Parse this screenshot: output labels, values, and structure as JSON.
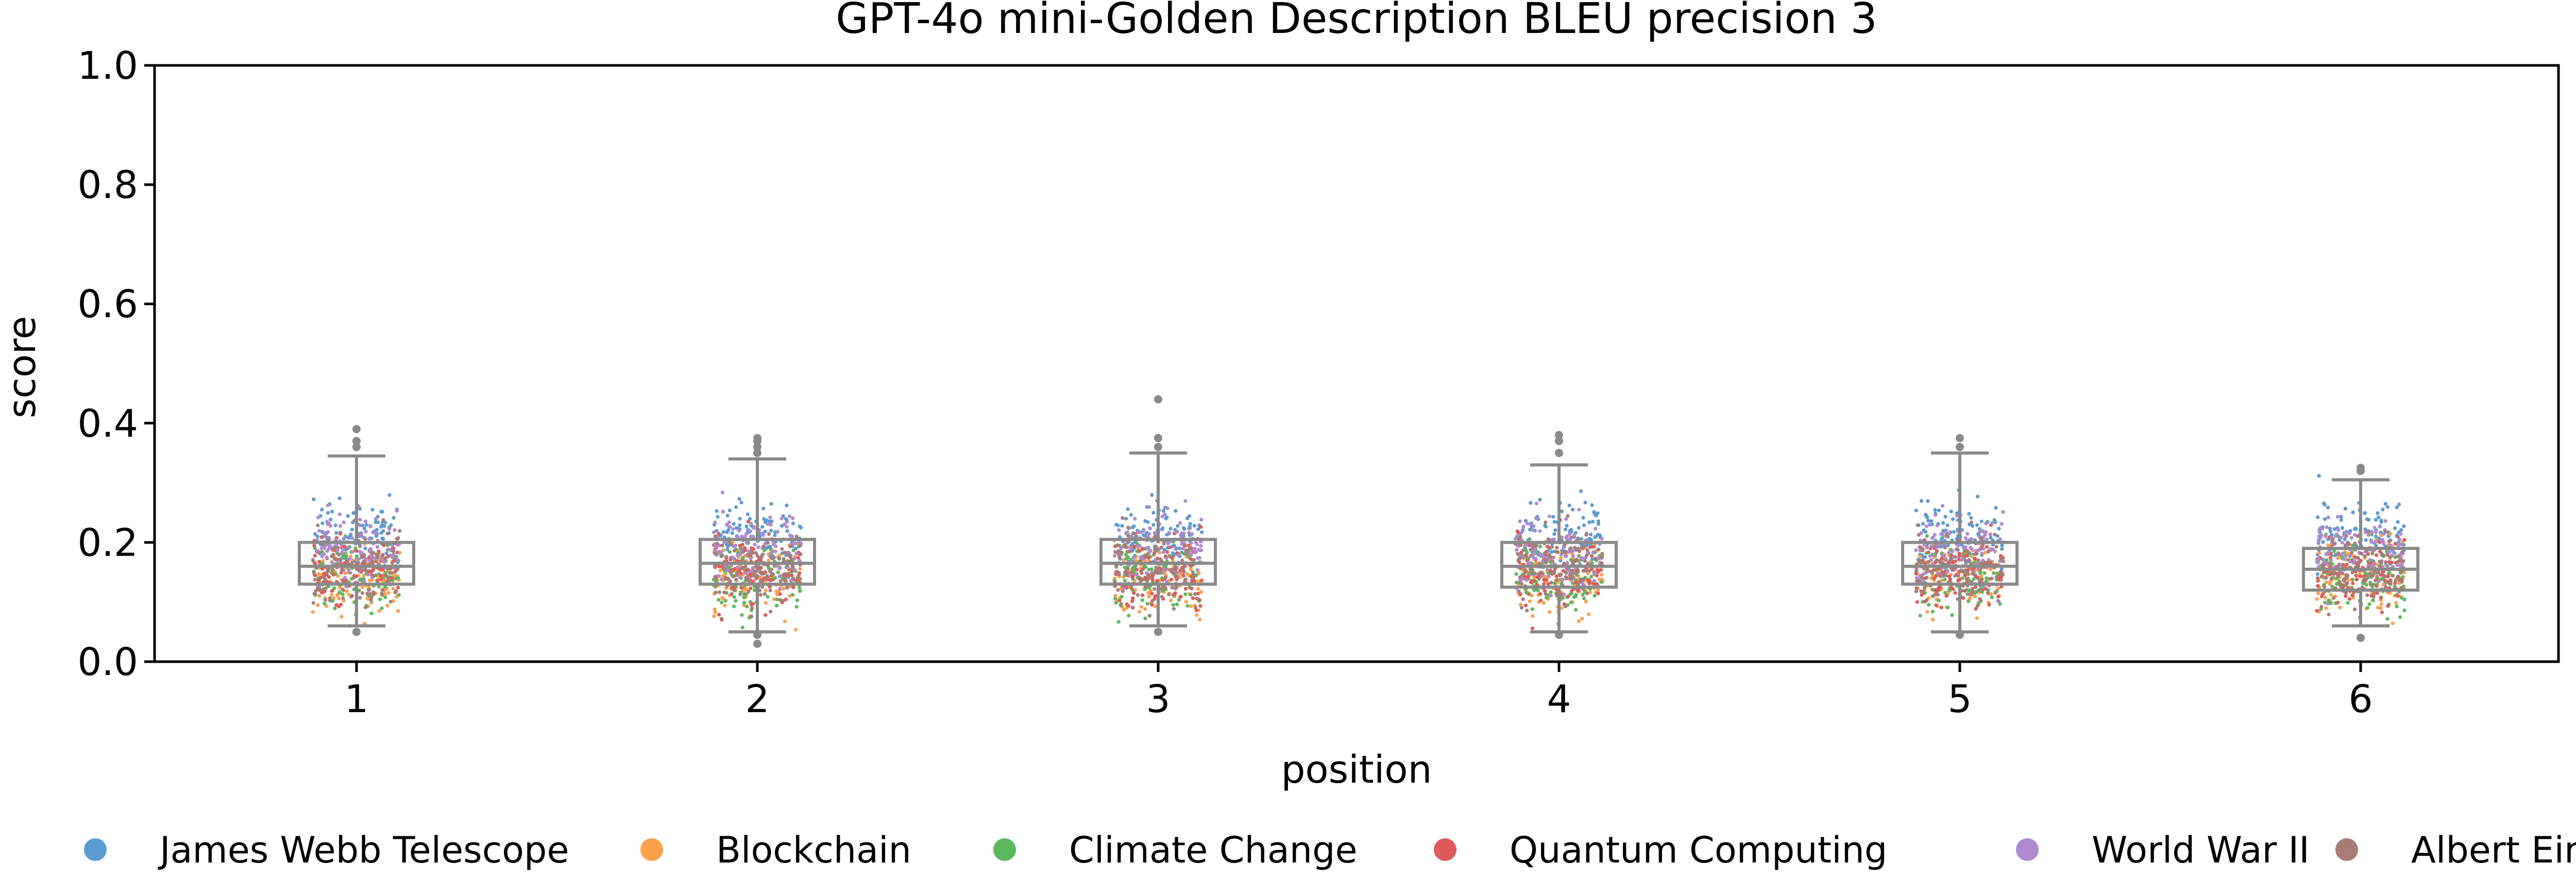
{
  "chart_data": {
    "type": "box+strip",
    "title": "GPT-4o mini-Golden Description BLEU precision 3",
    "xlabel": "position",
    "ylabel": "score",
    "ylim": [
      0.0,
      1.0
    ],
    "yticks": [
      "0.0",
      "0.2",
      "0.4",
      "0.6",
      "0.8",
      "1.0"
    ],
    "categories": [
      "1",
      "2",
      "3",
      "4",
      "5",
      "6"
    ],
    "grid": false,
    "legend_position": "bottom",
    "series": [
      {
        "name": "James Webb Telescope",
        "color": "#5a9bd3",
        "center": 0.21
      },
      {
        "name": "Blockchain",
        "color": "#ffa04a",
        "center": 0.14
      },
      {
        "name": "Climate Change",
        "color": "#5cb85c",
        "center": 0.145
      },
      {
        "name": "Quantum Computing",
        "color": "#e05a5a",
        "center": 0.15
      },
      {
        "name": "World War II",
        "color": "#b08ad0",
        "center": 0.19
      },
      {
        "name": "Albert Einstein",
        "color": "#a87d78",
        "center": 0.155
      }
    ],
    "boxes": [
      {
        "position": "1",
        "whisker_low": 0.06,
        "q1": 0.13,
        "median": 0.16,
        "q3": 0.2,
        "whisker_high": 0.345,
        "outliers": [
          0.36,
          0.37,
          0.39,
          0.05
        ]
      },
      {
        "position": "2",
        "whisker_low": 0.05,
        "q1": 0.13,
        "median": 0.165,
        "q3": 0.205,
        "whisker_high": 0.34,
        "outliers": [
          0.35,
          0.36,
          0.37,
          0.375,
          0.045,
          0.03
        ]
      },
      {
        "position": "3",
        "whisker_low": 0.06,
        "q1": 0.13,
        "median": 0.165,
        "q3": 0.205,
        "whisker_high": 0.35,
        "outliers": [
          0.36,
          0.375,
          0.44,
          0.05
        ]
      },
      {
        "position": "4",
        "whisker_low": 0.05,
        "q1": 0.125,
        "median": 0.16,
        "q3": 0.2,
        "whisker_high": 0.33,
        "outliers": [
          0.35,
          0.37,
          0.38,
          0.045
        ]
      },
      {
        "position": "5",
        "whisker_low": 0.05,
        "q1": 0.13,
        "median": 0.16,
        "q3": 0.2,
        "whisker_high": 0.35,
        "outliers": [
          0.36,
          0.375,
          0.045
        ]
      },
      {
        "position": "6",
        "whisker_low": 0.06,
        "q1": 0.12,
        "median": 0.155,
        "q3": 0.19,
        "whisker_high": 0.305,
        "outliers": [
          0.32,
          0.325,
          0.04
        ]
      }
    ],
    "points_per_series_per_position": 110,
    "colors": {
      "box": "#8a8a8a",
      "axis": "#000000"
    }
  }
}
